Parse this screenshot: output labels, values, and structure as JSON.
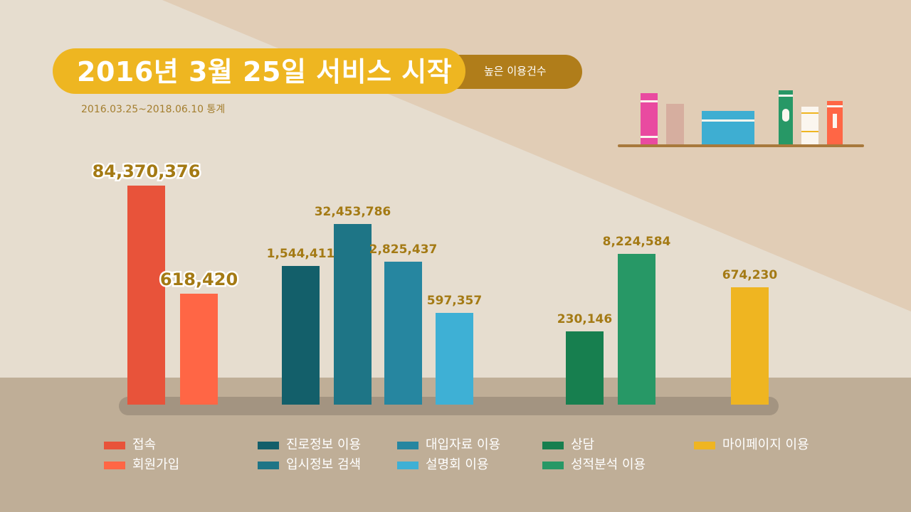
{
  "header": {
    "title": "2016년 3월 25일 서비스 시작",
    "badge": "높은 이용건수",
    "period": "2016.03.25~2018.06.10 통계"
  },
  "colors": {
    "background": "#e6ddcf",
    "floor": "#bfae97",
    "title_pill": "#eeb621",
    "badge_pill": "#b07d1a",
    "value_label": "#a47a14"
  },
  "chart_data": {
    "type": "bar",
    "title": "",
    "xlabel": "",
    "ylabel": "",
    "grid": false,
    "legend_position": "bottom",
    "categories": [
      "접속",
      "회원가입",
      "진로정보 이용",
      "입시정보 검색",
      "대입자료 이용",
      "설명회 이용",
      "상담",
      "성적분석 이용",
      "마이페이지 이용"
    ],
    "series": [
      {
        "values": [
          84370376,
          618420,
          1544411,
          32453786,
          2825437,
          597357,
          230146,
          8224584,
          674230
        ],
        "labels": [
          "84,370,376",
          "618,420",
          "1,544,411",
          "32,453,786",
          "2,825,437",
          "597,357",
          "230,146",
          "8,224,584",
          "674,230"
        ],
        "colors": [
          "#e8533a",
          "#ff6645",
          "#135f6a",
          "#1e7586",
          "#2686a0",
          "#3eb0d5",
          "#177f4f",
          "#279866",
          "#efb521"
        ]
      }
    ],
    "legend": [
      {
        "label": "접속",
        "color": "#e8533a"
      },
      {
        "label": "회원가입",
        "color": "#ff6645"
      },
      {
        "label": "진로정보 이용",
        "color": "#135f6a"
      },
      {
        "label": "입시정보 검색",
        "color": "#1e7586"
      },
      {
        "label": "대입자료 이용",
        "color": "#2686a0"
      },
      {
        "label": "설명회 이용",
        "color": "#3eb0d5"
      },
      {
        "label": "상담",
        "color": "#177f4f"
      },
      {
        "label": "성적분석 이용",
        "color": "#279866"
      },
      {
        "label": "마이페이지 이용",
        "color": "#efb521"
      }
    ]
  },
  "decoration": {
    "books": [
      {
        "name": "book-magenta",
        "color": "#e94aa0"
      },
      {
        "name": "book-tan",
        "color": "#d6ae9f"
      },
      {
        "name": "book-blue-box",
        "color": "#3eaed2"
      },
      {
        "name": "book-green",
        "color": "#279866"
      },
      {
        "name": "book-white",
        "color": "#fbf6ef"
      },
      {
        "name": "book-orange",
        "color": "#ff6645"
      }
    ]
  }
}
